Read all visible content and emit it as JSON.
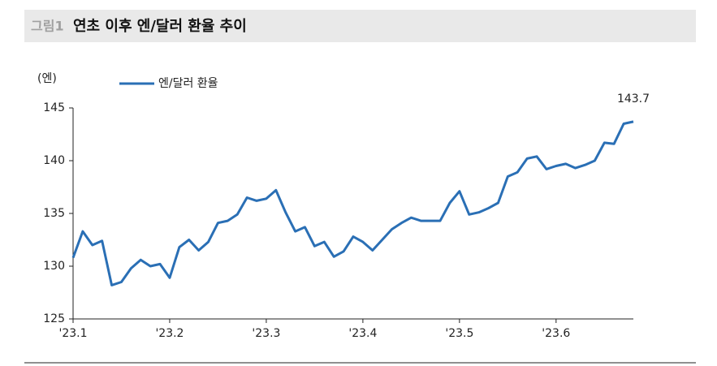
{
  "chart_data": {
    "type": "line",
    "figure_label": "그림1",
    "title": "연초 이후 엔/달러 환율 추이",
    "y_label": "(엔)",
    "categories": [
      "'23.1",
      null,
      null,
      null,
      null,
      null,
      null,
      null,
      null,
      null,
      "'23.2",
      null,
      null,
      null,
      null,
      null,
      null,
      null,
      null,
      null,
      "'23.3",
      null,
      null,
      null,
      null,
      null,
      null,
      null,
      null,
      null,
      "'23.4",
      null,
      null,
      null,
      null,
      null,
      null,
      null,
      null,
      null,
      "'23.5",
      null,
      null,
      null,
      null,
      null,
      null,
      null,
      null,
      null,
      "'23.6",
      null,
      null,
      null,
      null,
      null,
      null,
      null,
      null
    ],
    "series": [
      {
        "name": "엔/달러 환율",
        "color": "#2a6fb5",
        "values": [
          130.8,
          133.3,
          132.0,
          132.4,
          128.2,
          128.5,
          129.8,
          130.6,
          130.0,
          130.2,
          128.9,
          131.8,
          132.5,
          131.5,
          132.3,
          134.1,
          134.3,
          134.9,
          136.5,
          136.2,
          136.4,
          137.2,
          135.1,
          133.3,
          133.7,
          131.9,
          132.3,
          130.9,
          131.4,
          132.8,
          132.3,
          131.5,
          132.5,
          133.5,
          134.1,
          134.6,
          134.3,
          134.3,
          134.3,
          136.0,
          137.1,
          134.9,
          135.1,
          135.5,
          136.0,
          138.5,
          138.9,
          140.2,
          140.4,
          139.2,
          139.5,
          139.7,
          139.3,
          139.6,
          140.0,
          141.7,
          141.6,
          143.5,
          143.7
        ]
      }
    ],
    "ylim": [
      125,
      145
    ],
    "yticks": [
      125,
      130,
      135,
      140,
      145
    ],
    "grid": false
  }
}
